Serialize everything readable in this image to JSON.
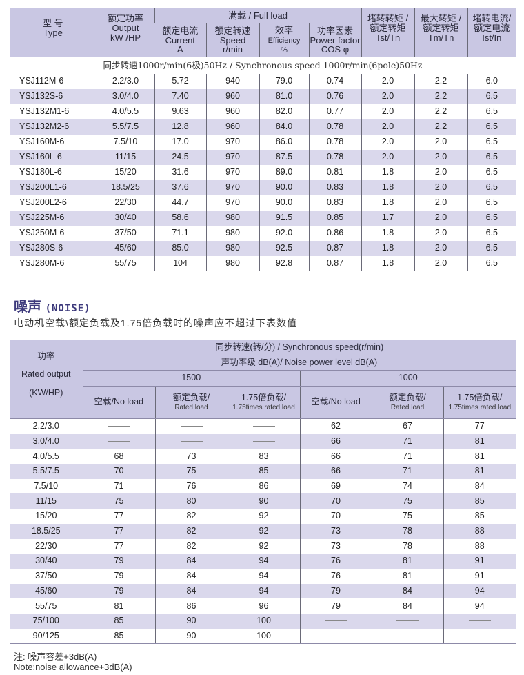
{
  "perf_table": {
    "headers": {
      "type_cn": "型 号",
      "type_en": "Type",
      "output_cn": "额定功率",
      "output_en": "Output",
      "output_unit": "kW /HP",
      "full_load": "满载 / Full load",
      "current_cn": "额定电流",
      "current_en": "Current",
      "current_unit": "A",
      "speed_cn": "额定转速",
      "speed_en": "Speed",
      "speed_unit": "r/min",
      "eff_cn": "效率",
      "eff_en": "Efficiency",
      "eff_unit": "%",
      "pf_cn": "功率因素",
      "pf_en": "Power factor",
      "pf_unit": "COS φ",
      "tst_cn1": "堵转转矩 /",
      "tst_cn2": "额定转矩",
      "tst_en": "Tst/Tn",
      "tm_cn1": "最大转矩 /",
      "tm_cn2": "额定转矩",
      "tm_en": "Tm/Tn",
      "ist_cn1": "堵转电流/",
      "ist_cn2": "额定电流",
      "ist_en": "Ist/In"
    },
    "subtitle": "同步转速1000r/min(6极)50Hz / Synchronous speed 1000r/min(6pole)50Hz",
    "rows": [
      [
        "YSJ112M-6",
        "2.2/3.0",
        "5.72",
        "940",
        "79.0",
        "0.74",
        "2.0",
        "2.2",
        "6.0"
      ],
      [
        "YSJ132S-6",
        "3.0/4.0",
        "7.40",
        "960",
        "81.0",
        "0.76",
        "2.0",
        "2.2",
        "6.5"
      ],
      [
        "YSJ132M1-6",
        "4.0/5.5",
        "9.63",
        "960",
        "82.0",
        "0.77",
        "2.0",
        "2.2",
        "6.5"
      ],
      [
        "YSJ132M2-6",
        "5.5/7.5",
        "12.8",
        "960",
        "84.0",
        "0.78",
        "2.0",
        "2.2",
        "6.5"
      ],
      [
        "YSJ160M-6",
        "7.5/10",
        "17.0",
        "970",
        "86.0",
        "0.78",
        "2.0",
        "2.0",
        "6.5"
      ],
      [
        "YSJ160L-6",
        "11/15",
        "24.5",
        "970",
        "87.5",
        "0.78",
        "2.0",
        "2.0",
        "6.5"
      ],
      [
        "YSJ180L-6",
        "15/20",
        "31.6",
        "970",
        "89.0",
        "0.81",
        "1.8",
        "2.0",
        "6.5"
      ],
      [
        "YSJ200L1-6",
        "18.5/25",
        "37.6",
        "970",
        "90.0",
        "0.83",
        "1.8",
        "2.0",
        "6.5"
      ],
      [
        "YSJ200L2-6",
        "22/30",
        "44.7",
        "970",
        "90.0",
        "0.83",
        "1.8",
        "2.0",
        "6.5"
      ],
      [
        "YSJ225M-6",
        "30/40",
        "58.6",
        "980",
        "91.5",
        "0.85",
        "1.7",
        "2.0",
        "6.5"
      ],
      [
        "YSJ250M-6",
        "37/50",
        "71.1",
        "980",
        "92.0",
        "0.86",
        "1.8",
        "2.0",
        "6.5"
      ],
      [
        "YSJ280S-6",
        "45/60",
        "85.0",
        "980",
        "92.5",
        "0.87",
        "1.8",
        "2.0",
        "6.5"
      ],
      [
        "YSJ280M-6",
        "55/75",
        "104",
        "980",
        "92.8",
        "0.87",
        "1.8",
        "2.0",
        "6.5"
      ]
    ]
  },
  "noise": {
    "title": "噪声",
    "title_en": "(NOISE)",
    "subtitle": "电动机空载\\额定负载及1.75倍负载时的噪声应不超过下表数值",
    "headers": {
      "power_cn": "功率",
      "power_en": "Rated output",
      "power_unit": "(KW/HP)",
      "sync": "同步转速(转/分) /  Synchronous speed(r/min)",
      "level": "声功率级 dB(A)/  Noise power level dB(A)",
      "speed1": "1500",
      "speed2": "1000",
      "noload": "空载/No load",
      "rated_cn": "额定负载/",
      "rated_en": "Rated load",
      "x175_cn": "1.75倍负载/",
      "x175_en": "1.75times rated load"
    },
    "rows": [
      [
        "2.2/3.0",
        "—",
        "—",
        "—",
        "62",
        "67",
        "77"
      ],
      [
        "3.0/4.0",
        "—",
        "—",
        "—",
        "66",
        "71",
        "81"
      ],
      [
        "4.0/5.5",
        "68",
        "73",
        "83",
        "66",
        "71",
        "81"
      ],
      [
        "5.5/7.5",
        "70",
        "75",
        "85",
        "66",
        "71",
        "81"
      ],
      [
        "7.5/10",
        "71",
        "76",
        "86",
        "69",
        "74",
        "84"
      ],
      [
        "11/15",
        "75",
        "80",
        "90",
        "70",
        "75",
        "85"
      ],
      [
        "15/20",
        "77",
        "82",
        "92",
        "70",
        "75",
        "85"
      ],
      [
        "18.5/25",
        "77",
        "82",
        "92",
        "73",
        "78",
        "88"
      ],
      [
        "22/30",
        "77",
        "82",
        "92",
        "73",
        "78",
        "88"
      ],
      [
        "30/40",
        "79",
        "84",
        "94",
        "76",
        "81",
        "91"
      ],
      [
        "37/50",
        "79",
        "84",
        "94",
        "76",
        "81",
        "91"
      ],
      [
        "45/60",
        "79",
        "84",
        "94",
        "79",
        "84",
        "94"
      ],
      [
        "55/75",
        "81",
        "86",
        "96",
        "79",
        "84",
        "94"
      ],
      [
        "75/100",
        "85",
        "90",
        "100",
        "—",
        "—",
        "—"
      ],
      [
        "90/125",
        "85",
        "90",
        "100",
        "—",
        "—",
        "—"
      ]
    ]
  },
  "notes": {
    "cn": "注:  噪声容差+3dB(A)",
    "en": "Note:noise allowance+3dB(A)"
  },
  "colors": {
    "header_bg": "#c9c7e3",
    "stripe": "#dad8ec",
    "title": "#3d3a7c"
  }
}
